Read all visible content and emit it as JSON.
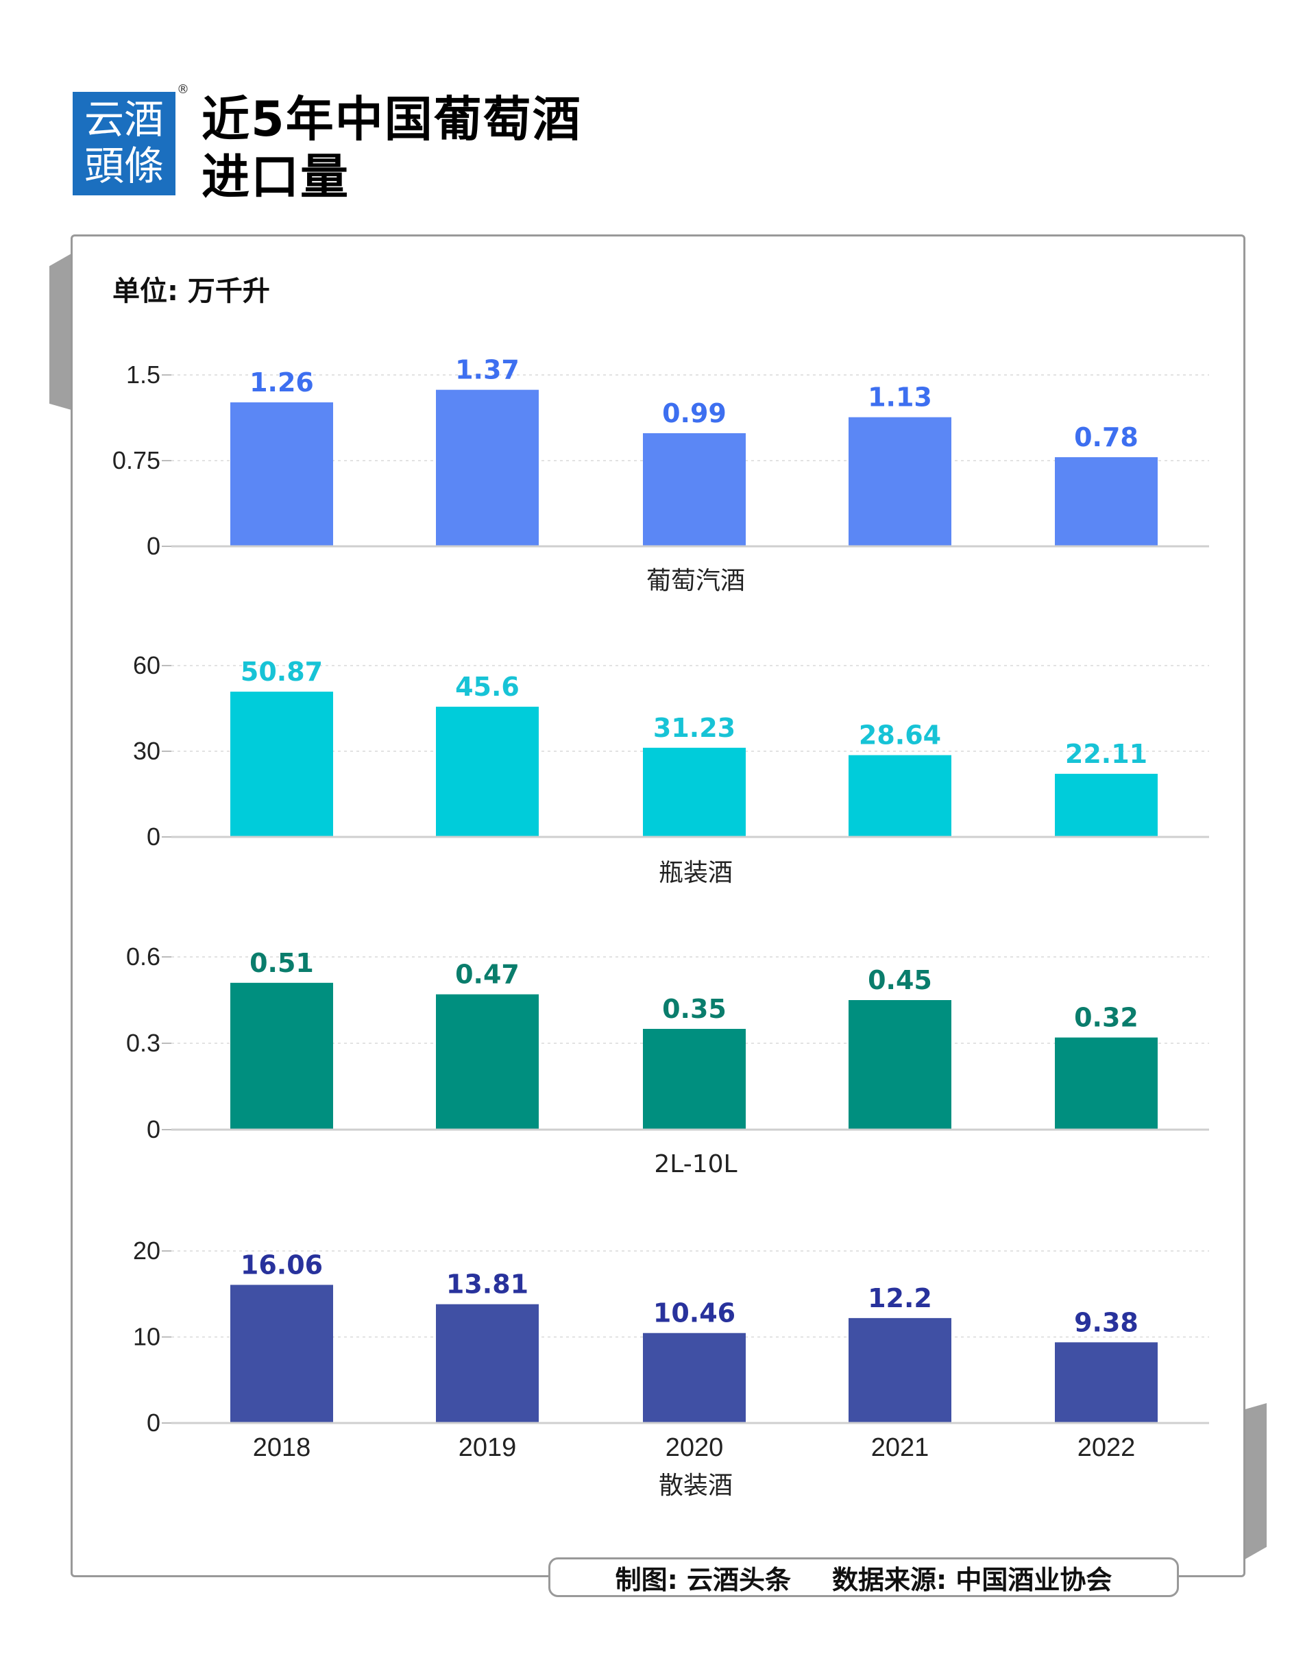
{
  "logo": {
    "line1": "云酒",
    "line2": "頭條",
    "reg": "®"
  },
  "title": {
    "line1": "近5年中国葡萄酒",
    "line2": "进口量"
  },
  "unit_label": "单位: 万千升",
  "footer": {
    "made_by": "制图: 云酒头条",
    "source": "数据来源: 中国酒业协会"
  },
  "chart_data": [
    {
      "type": "bar",
      "xlabel": "葡萄汽酒",
      "categories": [
        "2018",
        "2019",
        "2020",
        "2021",
        "2022"
      ],
      "values": [
        1.26,
        1.37,
        0.99,
        1.13,
        0.78
      ],
      "ylim": [
        0,
        1.5
      ],
      "ticks": [
        "0",
        "0.75",
        "1.5"
      ],
      "color": "#5b87f5",
      "label_color": "#3d6ff0",
      "grid": true,
      "show_years": false
    },
    {
      "type": "bar",
      "xlabel": "瓶装酒",
      "categories": [
        "2018",
        "2019",
        "2020",
        "2021",
        "2022"
      ],
      "values": [
        50.87,
        45.6,
        31.23,
        28.64,
        22.11
      ],
      "ylim": [
        0,
        60
      ],
      "ticks": [
        "0",
        "30",
        "60"
      ],
      "color": "#00ccda",
      "label_color": "#17c3d6",
      "grid": true,
      "show_years": false
    },
    {
      "type": "bar",
      "xlabel": "2L-10L",
      "categories": [
        "2018",
        "2019",
        "2020",
        "2021",
        "2022"
      ],
      "values": [
        0.51,
        0.47,
        0.35,
        0.45,
        0.32
      ],
      "ylim": [
        0,
        0.6
      ],
      "ticks": [
        "0",
        "0.3",
        "0.6"
      ],
      "color": "#008f7f",
      "label_color": "#0a7d6c",
      "grid": true,
      "show_years": false
    },
    {
      "type": "bar",
      "xlabel": "散装酒",
      "categories": [
        "2018",
        "2019",
        "2020",
        "2021",
        "2022"
      ],
      "values": [
        16.06,
        13.81,
        10.46,
        12.2,
        9.38
      ],
      "ylim": [
        0,
        20
      ],
      "ticks": [
        "0",
        "10",
        "20"
      ],
      "color": "#4050a4",
      "label_color": "#28329c",
      "grid": true,
      "show_years": true
    }
  ]
}
